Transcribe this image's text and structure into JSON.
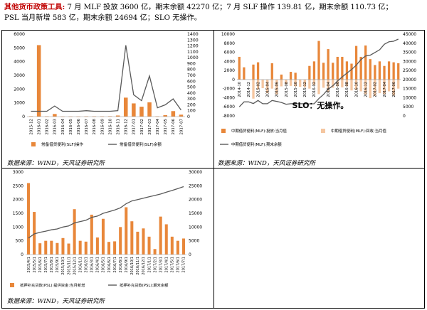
{
  "header": {
    "title_red": "其他货币政策工具:",
    "line1": "7 月 MLF 投放 3600 亿，期末余额 42270 亿；7 月 SLF 操作 139.81 亿，期末余额 110.73 亿；",
    "line2": "PSL 当月新增 583 亿，期末余额 24694 亿；SLO 无操作。"
  },
  "source_text": "数据来源：WIND，天风证券研究所",
  "slo_text": "SLO：无操作。",
  "chart_data": [
    {
      "id": "slf",
      "type": "bar",
      "categories": [
        "2015-12",
        "2016-01",
        "2016-02",
        "2016-03",
        "2016-04",
        "2016-05",
        "2016-06",
        "2016-07",
        "2016-08",
        "2016-09",
        "2016-10",
        "2016-11",
        "2016-12",
        "2017-01",
        "2017-02",
        "2017-03",
        "2017-04",
        "2017-05",
        "2017-06",
        "2017-07"
      ],
      "tick_labels": [
        "2015-12",
        "2016-01",
        "2016-02",
        "2016-03",
        "2016-04",
        "2016-05",
        "2016-06",
        "2016-07",
        "2016-08",
        "2016-09",
        "2016-10",
        "2016-11",
        "2016-12",
        "2017-01",
        "2017-02",
        "2017-03",
        "2017-04",
        "2017-05",
        "2017-06",
        "2017-07"
      ],
      "series": [
        {
          "name": "常备借贷便利(SLF)操作",
          "type": "bar",
          "axis": "left",
          "color": "#e8873a",
          "values": [
            30,
            5200,
            20,
            190,
            10,
            10,
            10,
            20,
            20,
            20,
            30,
            80,
            1380,
            960,
            720,
            1040,
            20,
            110,
            400,
            140
          ]
        },
        {
          "name": "常备借贷便利(SLF)余额",
          "type": "line",
          "axis": "right",
          "color": "#595959",
          "values": [
            90,
            90,
            90,
            180,
            90,
            90,
            90,
            100,
            90,
            90,
            90,
            100,
            1210,
            370,
            270,
            690,
            150,
            200,
            300,
            111
          ]
        }
      ],
      "y_left": {
        "min": 0,
        "max": 6000,
        "ticks": [
          0,
          1000,
          2000,
          3000,
          4000,
          5000,
          6000
        ]
      },
      "y_right": {
        "min": 0,
        "max": 1400,
        "ticks": [
          0,
          100,
          200,
          300,
          400,
          500,
          600,
          700,
          800,
          900,
          1000,
          1100,
          1200,
          1300,
          1400
        ]
      },
      "legend": [
        "常备借贷便利(SLF)操作",
        "常备借贷便利(SLF)余额"
      ]
    },
    {
      "id": "mlf",
      "type": "bar",
      "categories": [
        "2014-09",
        "2014-10",
        "2014-11",
        "2014-12",
        "2015-01",
        "2015-02",
        "2015-03",
        "2015-04",
        "2015-05",
        "2015-06",
        "2015-07",
        "2015-08",
        "2015-09",
        "2015-10",
        "2015-11",
        "2015-12",
        "2016-01",
        "2016-02",
        "2016-03",
        "2016-04",
        "2016-05",
        "2016-06",
        "2016-07",
        "2016-08",
        "2016-09",
        "2016-10",
        "2016-11",
        "2016-12",
        "2017-01",
        "2017-02",
        "2017-03",
        "2017-04",
        "2017-05",
        "2017-06",
        "2017-07"
      ],
      "tick_labels": [
        "2014-10",
        "2014-12",
        "2015-02",
        "2015-04",
        "2015-06",
        "2015-08",
        "2015-10",
        "2015-12",
        "2016-02",
        "2016-04",
        "2016-06",
        "2016-08",
        "2016-10",
        "2016-12",
        "2017-02",
        "2017-04",
        "2017-06"
      ],
      "series": [
        {
          "name": "中期借贷便利(MLF):投放:当月值",
          "type": "bar",
          "axis": "left",
          "color": "#e8873a",
          "values": [
            5000,
            2700,
            0,
            3300,
            3800,
            0,
            0,
            3600,
            0,
            1100,
            0,
            1700,
            1500,
            0,
            0,
            3000,
            4000,
            8500,
            3700,
            6700,
            3700,
            5000,
            5000,
            4000,
            3500,
            7400,
            5000,
            7500,
            4500,
            3200,
            4000,
            3000,
            4000,
            3800,
            3600
          ]
        },
        {
          "name": "中期借贷便利(MLF):回收:当月值",
          "type": "bar",
          "axis": "left",
          "color": "#f5c6a0",
          "values": [
            0,
            0,
            0,
            -4200,
            -2200,
            -1900,
            -3000,
            -2000,
            -3300,
            -1500,
            -1000,
            -1400,
            -1500,
            -1600,
            -1700,
            -2000,
            -1200,
            -3200,
            -1800,
            -2700,
            -1800,
            -1500,
            -1700,
            -1500,
            -2400,
            -2300,
            -2600,
            -3300,
            -4100,
            -3600,
            -3000,
            -3200,
            -2600,
            -3500,
            -2000
          ]
        },
        {
          "name": "中期借贷便利(MLF):期末余额",
          "type": "line",
          "axis": "right",
          "color": "#595959",
          "values": [
            5000,
            7700,
            7700,
            6800,
            8500,
            6700,
            6700,
            8500,
            8000,
            7400,
            6400,
            6700,
            6700,
            6700,
            6700,
            6600,
            6700,
            9500,
            11800,
            14700,
            16600,
            19200,
            21500,
            23500,
            25500,
            27900,
            31000,
            33000,
            33400,
            34900,
            36400,
            39400,
            40800,
            41100,
            42270
          ]
        }
      ],
      "y_left": {
        "min": -8000,
        "max": 10000,
        "ticks": [
          -8000,
          -6000,
          -4000,
          -2000,
          0,
          2000,
          4000,
          6000,
          8000,
          10000
        ]
      },
      "y_right": {
        "min": 0,
        "max": 45000,
        "ticks": [
          0,
          5000,
          10000,
          15000,
          20000,
          25000,
          30000,
          35000,
          40000,
          45000
        ]
      },
      "legend": [
        "中期借贷便利(MLF):投放:当月值",
        "中期借贷便利(MLF):回收:当月值",
        "中期借贷便利(MLF):期末余额"
      ]
    },
    {
      "id": "psl",
      "type": "bar",
      "categories": [
        "2015/4/1",
        "2015/5/1",
        "2015/6/1",
        "2015/7/1",
        "2015/8/1",
        "2015/9/1",
        "2015/10/1",
        "2015/11/1",
        "2015/12/1",
        "2016/1/1",
        "2016/2/1",
        "2016/3/1",
        "2016/4/1",
        "2016/5/1",
        "2016/6/1",
        "2016/7/1",
        "2016/8/1",
        "2016/9/1",
        "2016/10/1",
        "2016/11/1",
        "2016/12/1",
        "2017/1/1",
        "2017/2/1",
        "2017/3/1",
        "2017/4/1",
        "2017/5/1",
        "2017/6/1",
        "2017/7/1"
      ],
      "tick_labels": [
        "2015/4/1",
        "2015/5/1",
        "2015/6/1",
        "2015/7/1",
        "2015/8/1",
        "2015/9/1",
        "2015/10/1",
        "2015/11/1",
        "2015/12/1",
        "2016/1/1",
        "2016/2/1",
        "2016/3/1",
        "2016/4/1",
        "2016/5/1",
        "2016/6/1",
        "2016/7/1",
        "2016/8/1",
        "2016/9/1",
        "2016/10/1",
        "2016/11/1",
        "2016/12/1",
        "2017/1/1",
        "2017/2/1",
        "2017/3/1",
        "2017/4/1",
        "2017/5/1",
        "2017/6/1",
        "2017/7/1"
      ],
      "series": [
        {
          "name": "抵押补充贷款(PSL):提供资金:当月新增",
          "type": "bar",
          "axis": "left",
          "color": "#e8873a",
          "values": [
            2600,
            1550,
            410,
            500,
            500,
            420,
            600,
            400,
            1650,
            500,
            470,
            1450,
            620,
            1300,
            460,
            480,
            1000,
            1720,
            1210,
            830,
            950,
            650,
            200,
            1380,
            1100,
            650,
            500,
            583
          ]
        },
        {
          "name": "抵押补充贷款(PSL):期末余额",
          "type": "line",
          "axis": "right",
          "color": "#595959",
          "values": [
            6000,
            7500,
            8100,
            8500,
            9000,
            9300,
            10000,
            10400,
            11500,
            12000,
            12500,
            13500,
            14000,
            15000,
            15600,
            16200,
            17000,
            18500,
            19500,
            20000,
            20500,
            21000,
            21500,
            22000,
            22700,
            23300,
            24000,
            24694
          ]
        }
      ],
      "y_left": {
        "min": 0,
        "max": 3000,
        "ticks": [
          0,
          500,
          1000,
          1500,
          2000,
          2500,
          3000
        ]
      },
      "y_right": {
        "min": 0,
        "max": 30000,
        "ticks": [
          0,
          5000,
          10000,
          15000,
          20000,
          25000,
          30000
        ]
      },
      "legend": [
        "抵押补充贷款(PSL):提供资金:当月新增",
        "抵押补充贷款(PSL):期末余额"
      ]
    }
  ]
}
